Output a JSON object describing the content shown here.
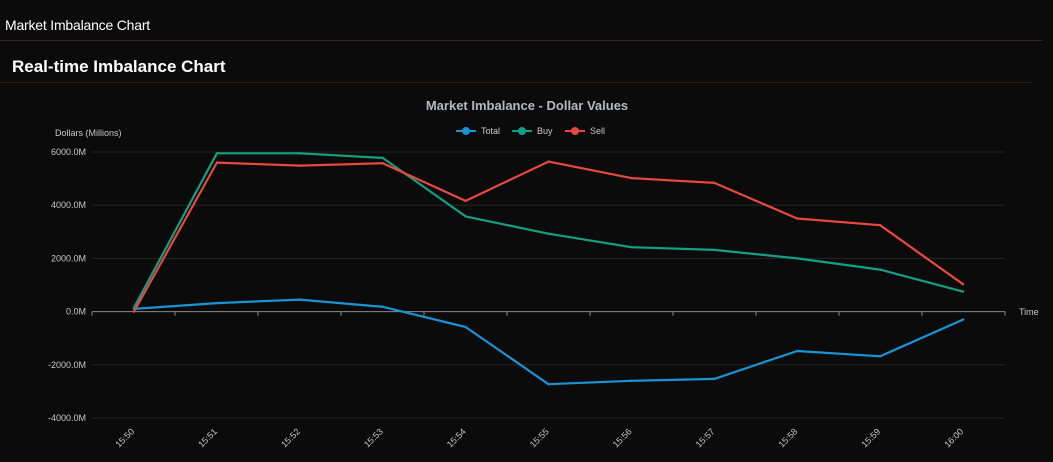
{
  "app": {
    "title": "Market Imbalance Chart"
  },
  "panel": {
    "title": "Real-time Imbalance Chart"
  },
  "chart_data": {
    "type": "line",
    "title": "Market Imbalance - Dollar Values",
    "xlabel": "Time",
    "ylabel": "Dollars (Millions)",
    "categories": [
      "15:50",
      "15:51",
      "15:52",
      "15:53",
      "15:54",
      "15:55",
      "15:56",
      "15:57",
      "15:58",
      "15:59",
      "16:00"
    ],
    "ylim": [
      -4000,
      6000
    ],
    "yticks": [
      -4000,
      -2000,
      0,
      2000,
      4000,
      6000
    ],
    "ytick_labels": [
      "-4000.0M",
      "-2000.0M",
      "0.0M",
      "2000.0M",
      "4000.0M",
      "6000.0M"
    ],
    "grid": true,
    "legend_position": "top-center",
    "series": [
      {
        "name": "Total",
        "color": "#1a93d4",
        "values": [
          100,
          320,
          450,
          180,
          -580,
          -2730,
          -2600,
          -2530,
          -1480,
          -1680,
          -300
        ]
      },
      {
        "name": "Buy",
        "color": "#12a085",
        "values": [
          150,
          5950,
          5950,
          5780,
          3580,
          2930,
          2420,
          2320,
          2000,
          1580,
          750
        ]
      },
      {
        "name": "Sell",
        "color": "#e8493f",
        "values": [
          0,
          5600,
          5490,
          5580,
          4160,
          5640,
          5020,
          4840,
          3500,
          3250,
          1030
        ]
      }
    ]
  }
}
